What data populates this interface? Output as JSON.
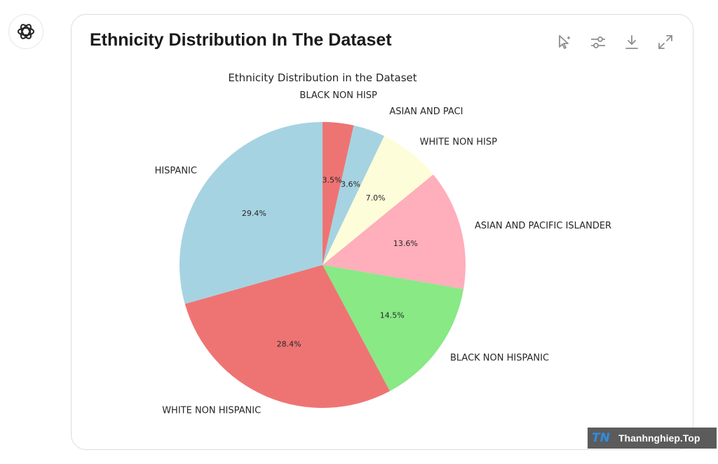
{
  "card": {
    "title": "Ethnicity Distribution In The Dataset",
    "toolbar": [
      {
        "name": "interactive-chart-button",
        "icon": "cursor-sparkle-icon"
      },
      {
        "name": "customize-chart-button",
        "icon": "sliders-icon"
      },
      {
        "name": "download-button",
        "icon": "download-icon"
      },
      {
        "name": "expand-button",
        "icon": "expand-icon"
      }
    ]
  },
  "chart_data": {
    "type": "pie",
    "title": "Ethnicity Distribution in the Dataset",
    "slices": [
      {
        "label": "BLACK NON HISP",
        "value": 3.5,
        "pct_label": "3.5%",
        "color": "#ee7473"
      },
      {
        "label": "ASIAN AND PACI",
        "value": 3.6,
        "pct_label": "3.6%",
        "color": "#a6d3e1"
      },
      {
        "label": "WHITE NON HISP",
        "value": 7.0,
        "pct_label": "7.0%",
        "color": "#fefdd9"
      },
      {
        "label": "ASIAN AND PACIFIC ISLANDER",
        "value": 13.6,
        "pct_label": "13.6%",
        "color": "#ffaebb"
      },
      {
        "label": "BLACK NON HISPANIC",
        "value": 14.5,
        "pct_label": "14.5%",
        "color": "#88e985"
      },
      {
        "label": "WHITE NON HISPANIC",
        "value": 28.4,
        "pct_label": "28.4%",
        "color": "#ee7473"
      },
      {
        "label": "HISPANIC",
        "value": 29.4,
        "pct_label": "29.4%",
        "color": "#a6d3e1"
      }
    ],
    "start_angle": "top",
    "direction": "clockwise"
  },
  "watermark": {
    "logo": "TN",
    "text": "Thanhnghiep.Top"
  }
}
